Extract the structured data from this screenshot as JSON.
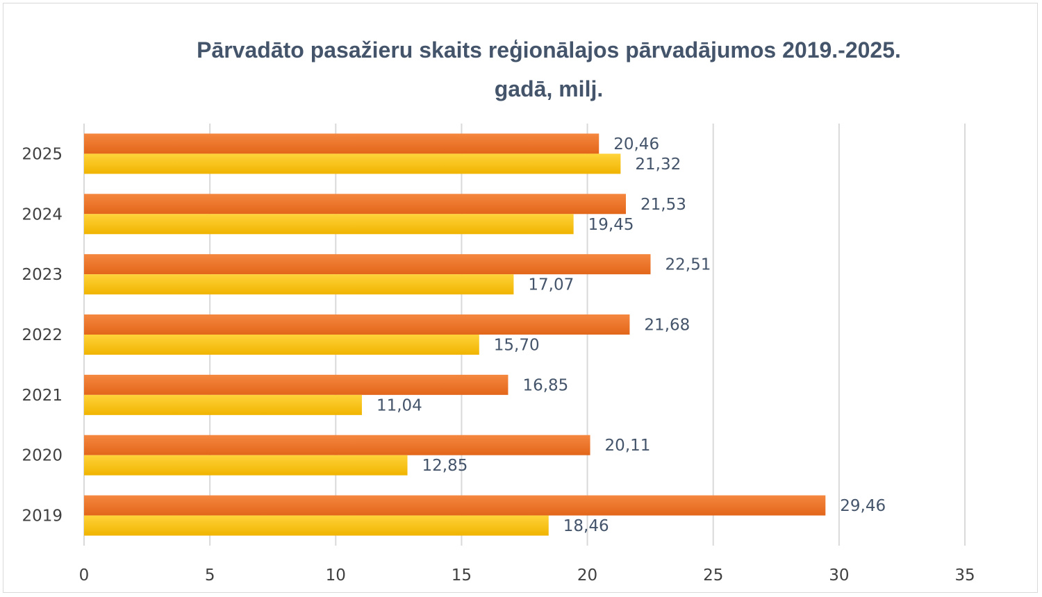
{
  "chart_data": {
    "type": "bar",
    "orientation": "horizontal",
    "title_line1": "Pārvadāto pasažieru skaits reģionālajos pārvadājumos 2019.-2025.",
    "title_line2": "gadā, milj.",
    "categories": [
      "2019",
      "2020",
      "2021",
      "2022",
      "2023",
      "2024",
      "2025"
    ],
    "series": [
      {
        "name": "series-orange",
        "color_top": "#f5873f",
        "color_bottom": "#e2661a",
        "values": [
          29.46,
          20.11,
          16.85,
          21.68,
          22.51,
          21.53,
          20.46
        ],
        "labels": [
          "29,46",
          "20,11",
          "16,85",
          "21,68",
          "22,51",
          "21,53",
          "20,46"
        ]
      },
      {
        "name": "series-yellow",
        "color_top": "#ffd33a",
        "color_bottom": "#f0b400",
        "values": [
          18.46,
          12.85,
          11.04,
          15.7,
          17.07,
          19.45,
          21.32
        ],
        "labels": [
          "18,46",
          "12,85",
          "11,04",
          "15,70",
          "17,07",
          "19,45",
          "21,32"
        ]
      }
    ],
    "xlim": [
      0,
      35
    ],
    "xticks": [
      "0",
      "5",
      "10",
      "15",
      "20",
      "25",
      "30",
      "35"
    ],
    "grid": true,
    "legend": "none"
  }
}
